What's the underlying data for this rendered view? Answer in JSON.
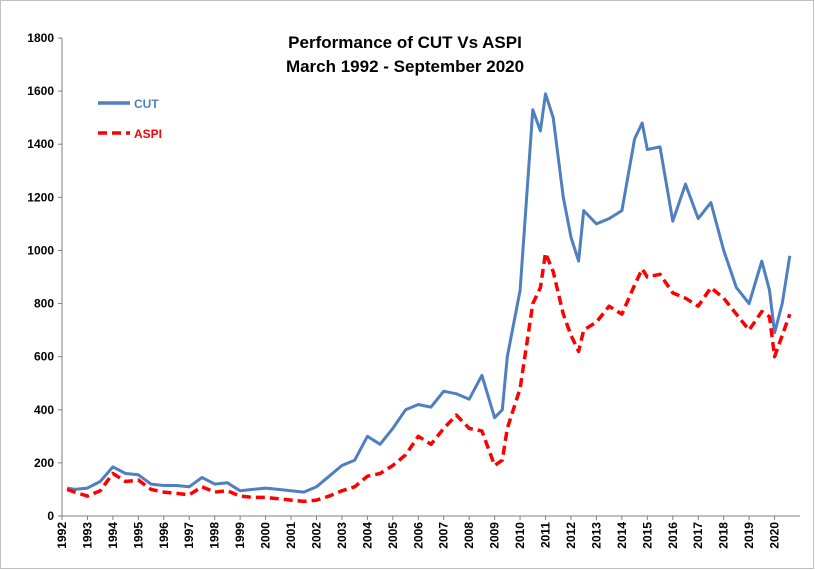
{
  "chart_data": {
    "type": "line",
    "title": "Performance of CUT Vs ASPI",
    "subtitle": "March 1992 - September 2020",
    "x": [
      1992.2,
      1992.5,
      1993.0,
      1993.5,
      1994.0,
      1994.5,
      1995.0,
      1995.5,
      1996.0,
      1996.5,
      1997.0,
      1997.5,
      1998.0,
      1998.5,
      1999.0,
      1999.5,
      2000.0,
      2000.5,
      2001.0,
      2001.5,
      2002.0,
      2002.5,
      2003.0,
      2003.5,
      2004.0,
      2004.5,
      2005.0,
      2005.5,
      2006.0,
      2006.5,
      2007.0,
      2007.5,
      2008.0,
      2008.5,
      2009.0,
      2009.3,
      2009.5,
      2010.0,
      2010.5,
      2010.8,
      2011.0,
      2011.3,
      2011.7,
      2012.0,
      2012.3,
      2012.5,
      2013.0,
      2013.5,
      2014.0,
      2014.5,
      2014.8,
      2015.0,
      2015.5,
      2016.0,
      2016.5,
      2017.0,
      2017.5,
      2018.0,
      2018.5,
      2019.0,
      2019.5,
      2019.8,
      2020.0,
      2020.3,
      2020.6
    ],
    "series": [
      {
        "name": "CUT",
        "color": "#4f7fbf",
        "dashed": false,
        "values": [
          105,
          100,
          105,
          130,
          185,
          160,
          155,
          120,
          115,
          115,
          110,
          145,
          120,
          125,
          95,
          100,
          105,
          100,
          95,
          90,
          110,
          150,
          190,
          210,
          300,
          270,
          330,
          400,
          420,
          410,
          470,
          460,
          440,
          530,
          370,
          400,
          600,
          850,
          1530,
          1450,
          1590,
          1500,
          1200,
          1050,
          960,
          1150,
          1100,
          1120,
          1150,
          1420,
          1480,
          1380,
          1390,
          1110,
          1250,
          1120,
          1180,
          1000,
          860,
          800,
          960,
          850,
          690,
          800,
          980
        ]
      },
      {
        "name": "ASPI",
        "color": "#ff0000",
        "dashed": true,
        "values": [
          100,
          90,
          75,
          95,
          160,
          130,
          135,
          100,
          90,
          85,
          80,
          110,
          90,
          95,
          75,
          70,
          70,
          65,
          60,
          55,
          60,
          75,
          95,
          110,
          150,
          160,
          190,
          230,
          300,
          270,
          330,
          380,
          330,
          320,
          190,
          210,
          330,
          480,
          800,
          860,
          990,
          920,
          760,
          680,
          620,
          700,
          730,
          790,
          760,
          870,
          930,
          900,
          910,
          840,
          820,
          790,
          860,
          820,
          760,
          700,
          770,
          750,
          600,
          680,
          760
        ]
      }
    ],
    "xlim": [
      1992,
      2021
    ],
    "xticks": [
      1992,
      1993,
      1994,
      1995,
      1996,
      1997,
      1998,
      1999,
      2000,
      2001,
      2002,
      2003,
      2004,
      2005,
      2006,
      2007,
      2008,
      2009,
      2010,
      2011,
      2012,
      2013,
      2014,
      2015,
      2016,
      2017,
      2018,
      2019,
      2020
    ],
    "ylim": [
      0,
      1800
    ],
    "yticks": [
      0,
      200,
      400,
      600,
      800,
      1000,
      1200,
      1400,
      1600,
      1800
    ],
    "grid": false,
    "legend": "upper left"
  }
}
